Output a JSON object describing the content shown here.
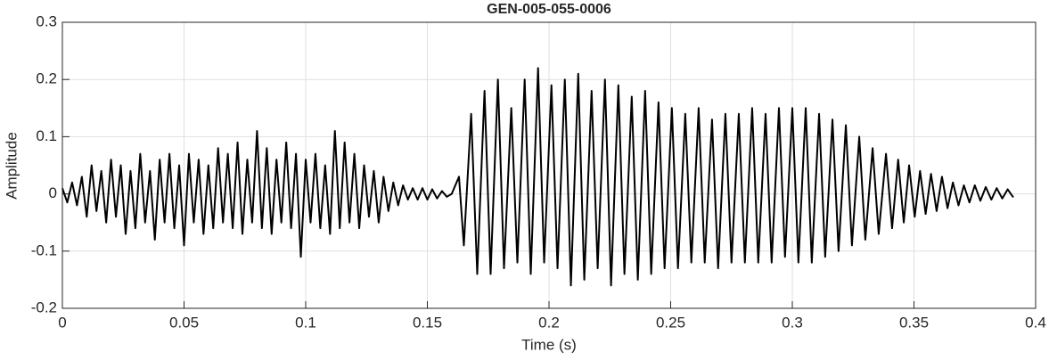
{
  "chart_data": {
    "type": "line",
    "title": "GEN-005-055-0006",
    "xlabel": "Time (s)",
    "ylabel": "Amplitude",
    "xlim": [
      0,
      0.4
    ],
    "xticks": [
      0,
      0.05,
      0.1,
      0.15,
      0.2,
      0.25,
      0.3,
      0.35,
      0.4
    ],
    "ylim": [
      -0.2,
      0.3
    ],
    "yticks": [
      -0.2,
      -0.1,
      0,
      0.1,
      0.2,
      0.3
    ],
    "grid": true,
    "series": [
      {
        "color": "#000000",
        "x": [
          0,
          0.002,
          0.004,
          0.006,
          0.008,
          0.01,
          0.012,
          0.014,
          0.016,
          0.018,
          0.02,
          0.022,
          0.024,
          0.026,
          0.028,
          0.03,
          0.032,
          0.034,
          0.036,
          0.038,
          0.04,
          0.042,
          0.044,
          0.046,
          0.048,
          0.05,
          0.052,
          0.054,
          0.056,
          0.058,
          0.06,
          0.062,
          0.064,
          0.066,
          0.068,
          0.07,
          0.072,
          0.074,
          0.076,
          0.078,
          0.08,
          0.082,
          0.084,
          0.086,
          0.088,
          0.09,
          0.092,
          0.094,
          0.096,
          0.098,
          0.1,
          0.102,
          0.104,
          0.106,
          0.108,
          0.11,
          0.112,
          0.114,
          0.116,
          0.118,
          0.12,
          0.122,
          0.124,
          0.126,
          0.128,
          0.13,
          0.132,
          0.134,
          0.136,
          0.138,
          0.14,
          0.142,
          0.144,
          0.146,
          0.148,
          0.15,
          0.152,
          0.154,
          0.156,
          0.158,
          0.16,
          0.163,
          0.165,
          0.168,
          0.1705,
          0.1735,
          0.176,
          0.179,
          0.1815,
          0.1845,
          0.187,
          0.19,
          0.1925,
          0.1955,
          0.198,
          0.201,
          0.2035,
          0.2065,
          0.209,
          0.212,
          0.2145,
          0.2175,
          0.22,
          0.223,
          0.2255,
          0.2285,
          0.231,
          0.234,
          0.2365,
          0.2395,
          0.242,
          0.245,
          0.2475,
          0.2505,
          0.253,
          0.256,
          0.2585,
          0.2615,
          0.264,
          0.267,
          0.2695,
          0.2725,
          0.275,
          0.278,
          0.2805,
          0.2835,
          0.286,
          0.289,
          0.2915,
          0.2945,
          0.297,
          0.3,
          0.3025,
          0.3055,
          0.308,
          0.311,
          0.3135,
          0.3165,
          0.319,
          0.322,
          0.3245,
          0.3275,
          0.33,
          0.333,
          0.3355,
          0.3385,
          0.341,
          0.3435,
          0.3458,
          0.348,
          0.3503,
          0.3525,
          0.3548,
          0.357,
          0.3593,
          0.3615,
          0.3638,
          0.366,
          0.3683,
          0.3705,
          0.3728,
          0.375,
          0.3773,
          0.3795,
          0.3818,
          0.384,
          0.3863,
          0.3885,
          0.3908
        ],
        "values": [
          0.01,
          -0.015,
          0.02,
          -0.02,
          0.03,
          -0.04,
          0.05,
          -0.03,
          0.04,
          -0.05,
          0.06,
          -0.04,
          0.05,
          -0.07,
          0.04,
          -0.06,
          0.07,
          -0.05,
          0.04,
          -0.08,
          0.06,
          -0.05,
          0.07,
          -0.06,
          0.05,
          -0.09,
          0.07,
          -0.05,
          0.06,
          -0.07,
          0.05,
          -0.06,
          0.08,
          -0.05,
          0.07,
          -0.06,
          0.09,
          -0.07,
          0.06,
          -0.05,
          0.11,
          -0.06,
          0.08,
          -0.07,
          0.06,
          -0.05,
          0.09,
          -0.06,
          0.07,
          -0.11,
          0.06,
          -0.05,
          0.07,
          -0.06,
          0.05,
          -0.07,
          0.11,
          -0.06,
          0.09,
          -0.05,
          0.07,
          -0.06,
          0.05,
          -0.04,
          0.04,
          -0.05,
          0.03,
          -0.03,
          0.02,
          -0.02,
          0.015,
          -0.01,
          0.01,
          -0.01,
          0.01,
          -0.01,
          0.008,
          -0.008,
          0.005,
          -0.005,
          0,
          0.03,
          -0.09,
          0.14,
          -0.14,
          0.18,
          -0.14,
          0.2,
          -0.13,
          0.15,
          -0.12,
          0.2,
          -0.14,
          0.22,
          -0.12,
          0.19,
          -0.13,
          0.2,
          -0.16,
          0.21,
          -0.15,
          0.18,
          -0.13,
          0.2,
          -0.16,
          0.19,
          -0.14,
          0.17,
          -0.15,
          0.18,
          -0.14,
          0.16,
          -0.13,
          0.15,
          -0.13,
          0.14,
          -0.12,
          0.15,
          -0.12,
          0.13,
          -0.13,
          0.14,
          -0.12,
          0.14,
          -0.12,
          0.15,
          -0.12,
          0.14,
          -0.12,
          0.15,
          -0.11,
          0.15,
          -0.12,
          0.15,
          -0.12,
          0.14,
          -0.11,
          0.13,
          -0.1,
          0.12,
          -0.09,
          0.1,
          -0.08,
          0.08,
          -0.07,
          0.07,
          -0.06,
          0.06,
          -0.05,
          0.05,
          -0.04,
          0.04,
          -0.035,
          0.035,
          -0.03,
          0.03,
          -0.025,
          0.02,
          -0.02,
          0.015,
          -0.015,
          0.015,
          -0.012,
          0.012,
          -0.01,
          0.01,
          -0.008,
          0.008,
          -0.006
        ]
      }
    ]
  }
}
